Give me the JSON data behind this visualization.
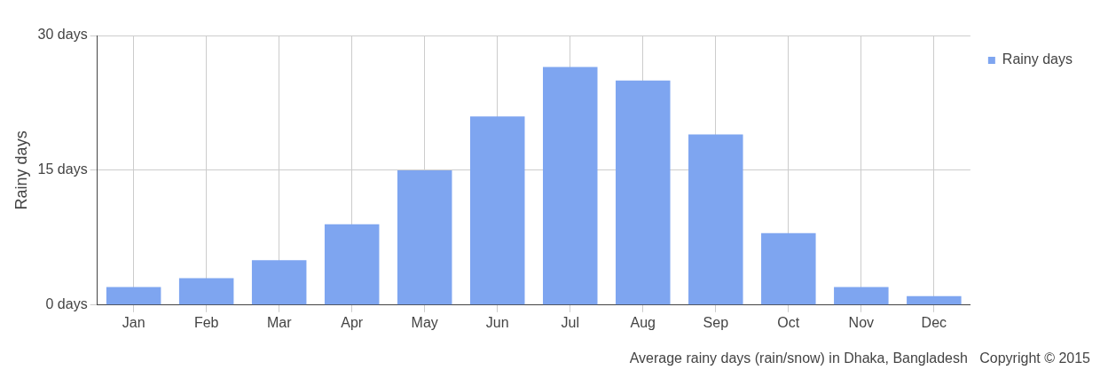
{
  "chart_data": {
    "type": "bar",
    "ylabel": "Rainy days",
    "categories": [
      "Jan",
      "Feb",
      "Mar",
      "Apr",
      "May",
      "Jun",
      "Jul",
      "Aug",
      "Sep",
      "Oct",
      "Nov",
      "Dec"
    ],
    "series": [
      {
        "name": "Rainy days",
        "color": "#7ea5f0",
        "values": [
          2,
          3,
          5,
          9,
          15,
          21,
          26.5,
          25,
          19,
          8,
          2,
          1
        ]
      }
    ],
    "ylim": [
      0,
      30
    ],
    "yticks": [
      {
        "value": 0,
        "label": "0 days"
      },
      {
        "value": 15,
        "label": "15 days"
      },
      {
        "value": 30,
        "label": "30 days"
      }
    ],
    "grid": true,
    "legend": "top right",
    "annotations": [
      "Average rainy days (rain/snow) in Dhaka, Bangladesh   Copyright © 2015"
    ]
  }
}
